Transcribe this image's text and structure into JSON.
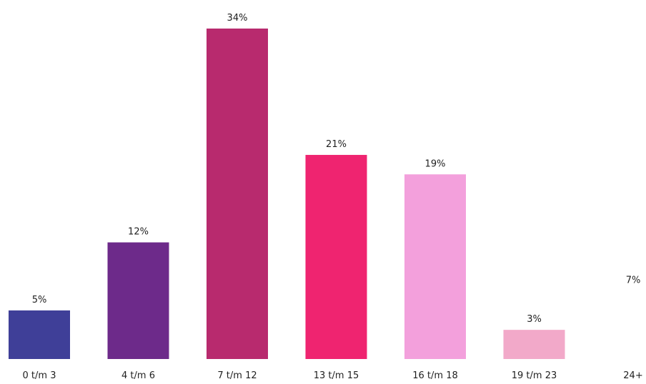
{
  "chart_data": {
    "type": "bar",
    "title": "",
    "xlabel": "",
    "ylabel": "",
    "categories": [
      "0 t/m 3",
      "4 t/m 6",
      "7 t/m 12",
      "13 t/m 15",
      "16 t/m 18",
      "19 t/m 23",
      "24+"
    ],
    "values": [
      5,
      12,
      34,
      21,
      19,
      3,
      7
    ],
    "value_labels": [
      "5%",
      "12%",
      "34%",
      "21%",
      "19%",
      "3%",
      "7%"
    ],
    "colors": [
      "#3f3f98",
      "#6d2a8a",
      "#b82a6e",
      "#ef2470",
      "#f3a0dc",
      "#f2a9c9",
      "#ffffff"
    ],
    "ylim": [
      0,
      34
    ],
    "grid": false,
    "legend": "none"
  }
}
